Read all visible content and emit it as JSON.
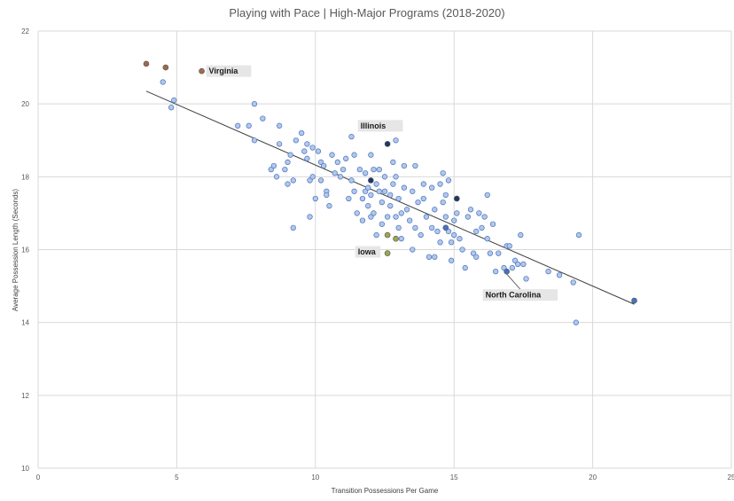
{
  "chart_data": {
    "type": "scatter",
    "title": "Playing with Pace | High-Major Programs (2018-2020)",
    "xlabel": "Transition Possessions Per Game",
    "ylabel": "Average Possession Length (Seconds)",
    "xlim": [
      0,
      25
    ],
    "ylim": [
      10,
      22
    ],
    "xticks": [
      0,
      5,
      10,
      15,
      20,
      25
    ],
    "yticks": [
      10,
      12,
      14,
      16,
      18,
      20,
      22
    ],
    "grid": true,
    "default_color": "#b4c7e7",
    "default_stroke": "#4472c4",
    "trendline": {
      "x1": 3.9,
      "y1": 20.35,
      "x2": 21.5,
      "y2": 14.5,
      "color": "#404040"
    },
    "highlighted_points": [
      {
        "x": 3.9,
        "y": 21.1,
        "color": "#a0694f"
      },
      {
        "x": 4.6,
        "y": 21.0,
        "color": "#a0694f"
      },
      {
        "x": 5.9,
        "y": 20.9,
        "color": "#a0694f"
      },
      {
        "x": 12.6,
        "y": 18.9,
        "color": "#1f3864"
      },
      {
        "x": 12.0,
        "y": 17.9,
        "color": "#1f3864"
      },
      {
        "x": 15.1,
        "y": 17.4,
        "color": "#1f3864"
      },
      {
        "x": 12.6,
        "y": 16.4,
        "color": "#9aa84a"
      },
      {
        "x": 12.9,
        "y": 16.3,
        "color": "#9aa84a"
      },
      {
        "x": 12.6,
        "y": 15.9,
        "color": "#9aa84a"
      },
      {
        "x": 14.7,
        "y": 16.6,
        "color": "#4472c4"
      },
      {
        "x": 16.9,
        "y": 15.4,
        "color": "#4472c4"
      },
      {
        "x": 21.5,
        "y": 14.6,
        "color": "#4472c4"
      }
    ],
    "annotations": [
      {
        "label": "Virginia",
        "x": 5.9,
        "y": 20.9,
        "position": "right"
      },
      {
        "label": "Illinois",
        "x": 12.6,
        "y": 18.9,
        "position": "above"
      },
      {
        "label": "Iowa",
        "x": 12.6,
        "y": 15.9,
        "position": "left"
      },
      {
        "label": "North Carolina",
        "x": 16.9,
        "y": 15.4,
        "position": "below"
      }
    ],
    "points": [
      [
        4.5,
        20.6
      ],
      [
        4.8,
        19.9
      ],
      [
        4.9,
        20.1
      ],
      [
        7.2,
        19.4
      ],
      [
        7.6,
        19.4
      ],
      [
        7.8,
        20.0
      ],
      [
        7.8,
        19.0
      ],
      [
        8.1,
        19.6
      ],
      [
        8.4,
        18.2
      ],
      [
        8.5,
        18.3
      ],
      [
        8.6,
        18.0
      ],
      [
        8.7,
        19.4
      ],
      [
        8.7,
        18.9
      ],
      [
        8.9,
        18.2
      ],
      [
        9.0,
        17.8
      ],
      [
        9.0,
        18.4
      ],
      [
        9.1,
        18.6
      ],
      [
        9.2,
        17.9
      ],
      [
        9.2,
        16.6
      ],
      [
        9.3,
        19.0
      ],
      [
        9.5,
        19.2
      ],
      [
        9.6,
        18.7
      ],
      [
        9.7,
        18.9
      ],
      [
        9.7,
        18.5
      ],
      [
        9.8,
        17.9
      ],
      [
        9.8,
        16.9
      ],
      [
        9.9,
        18.8
      ],
      [
        9.9,
        18.0
      ],
      [
        10.0,
        17.4
      ],
      [
        10.1,
        18.7
      ],
      [
        10.2,
        18.4
      ],
      [
        10.2,
        17.9
      ],
      [
        10.3,
        18.3
      ],
      [
        10.4,
        17.6
      ],
      [
        10.4,
        17.5
      ],
      [
        10.5,
        17.2
      ],
      [
        10.6,
        18.6
      ],
      [
        10.7,
        18.1
      ],
      [
        10.8,
        18.4
      ],
      [
        10.9,
        18.0
      ],
      [
        11.0,
        18.2
      ],
      [
        11.1,
        18.5
      ],
      [
        11.2,
        17.4
      ],
      [
        11.3,
        19.1
      ],
      [
        11.3,
        17.9
      ],
      [
        11.4,
        18.6
      ],
      [
        11.4,
        17.6
      ],
      [
        11.5,
        17.0
      ],
      [
        11.6,
        18.2
      ],
      [
        11.7,
        17.4
      ],
      [
        11.7,
        16.8
      ],
      [
        11.8,
        18.1
      ],
      [
        11.8,
        17.6
      ],
      [
        11.9,
        17.7
      ],
      [
        11.9,
        17.2
      ],
      [
        12.0,
        18.6
      ],
      [
        12.0,
        17.5
      ],
      [
        12.0,
        16.9
      ],
      [
        12.1,
        18.2
      ],
      [
        12.1,
        17.0
      ],
      [
        12.2,
        17.8
      ],
      [
        12.2,
        16.4
      ],
      [
        12.3,
        18.2
      ],
      [
        12.3,
        17.6
      ],
      [
        12.4,
        17.3
      ],
      [
        12.4,
        16.7
      ],
      [
        12.5,
        18.0
      ],
      [
        12.5,
        17.6
      ],
      [
        12.6,
        16.9
      ],
      [
        12.7,
        17.5
      ],
      [
        12.7,
        17.2
      ],
      [
        12.8,
        18.4
      ],
      [
        12.8,
        17.8
      ],
      [
        12.9,
        19.0
      ],
      [
        12.9,
        18.0
      ],
      [
        12.9,
        16.9
      ],
      [
        13.0,
        17.4
      ],
      [
        13.0,
        16.6
      ],
      [
        13.1,
        17.0
      ],
      [
        13.1,
        16.3
      ],
      [
        13.2,
        18.3
      ],
      [
        13.2,
        17.7
      ],
      [
        13.3,
        17.1
      ],
      [
        13.4,
        16.8
      ],
      [
        13.5,
        17.6
      ],
      [
        13.5,
        16.0
      ],
      [
        13.6,
        18.3
      ],
      [
        13.6,
        16.6
      ],
      [
        13.7,
        17.3
      ],
      [
        13.8,
        16.4
      ],
      [
        13.9,
        17.8
      ],
      [
        13.9,
        17.4
      ],
      [
        14.0,
        16.9
      ],
      [
        14.1,
        15.8
      ],
      [
        14.2,
        17.7
      ],
      [
        14.2,
        16.6
      ],
      [
        14.3,
        17.1
      ],
      [
        14.3,
        15.8
      ],
      [
        14.4,
        16.5
      ],
      [
        14.5,
        17.8
      ],
      [
        14.5,
        16.2
      ],
      [
        14.6,
        17.3
      ],
      [
        14.6,
        18.1
      ],
      [
        14.7,
        17.5
      ],
      [
        14.7,
        16.9
      ],
      [
        14.8,
        16.5
      ],
      [
        14.8,
        17.9
      ],
      [
        14.9,
        16.2
      ],
      [
        14.9,
        15.7
      ],
      [
        15.0,
        16.8
      ],
      [
        15.0,
        16.4
      ],
      [
        15.1,
        17.0
      ],
      [
        15.2,
        16.3
      ],
      [
        15.3,
        16.0
      ],
      [
        15.4,
        15.5
      ],
      [
        15.5,
        16.9
      ],
      [
        15.6,
        17.1
      ],
      [
        15.7,
        15.9
      ],
      [
        15.8,
        16.5
      ],
      [
        15.8,
        15.8
      ],
      [
        15.9,
        17.0
      ],
      [
        16.0,
        16.6
      ],
      [
        16.1,
        16.9
      ],
      [
        16.2,
        17.5
      ],
      [
        16.2,
        16.3
      ],
      [
        16.3,
        15.9
      ],
      [
        16.4,
        16.7
      ],
      [
        16.5,
        15.4
      ],
      [
        16.6,
        15.9
      ],
      [
        16.8,
        15.5
      ],
      [
        16.9,
        16.1
      ],
      [
        17.0,
        16.1
      ],
      [
        17.1,
        15.5
      ],
      [
        17.2,
        15.7
      ],
      [
        17.3,
        15.6
      ],
      [
        17.4,
        16.4
      ],
      [
        17.5,
        15.6
      ],
      [
        17.6,
        15.2
      ],
      [
        18.4,
        15.4
      ],
      [
        18.8,
        15.3
      ],
      [
        19.3,
        15.1
      ],
      [
        19.4,
        14.0
      ],
      [
        19.5,
        16.4
      ]
    ]
  }
}
